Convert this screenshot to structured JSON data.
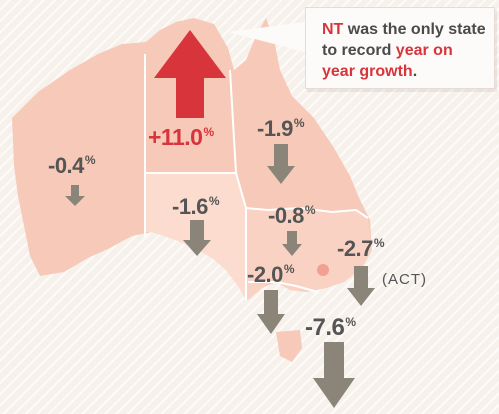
{
  "callout": {
    "state_word": "NT",
    "text_middle": "was the only state to record",
    "highlight": "year on year growth",
    "end": "."
  },
  "regions": {
    "wa": {
      "value": "-0.4",
      "unit": "%",
      "direction": "down"
    },
    "nt": {
      "value": "+11.0",
      "unit": "%",
      "direction": "up"
    },
    "qld": {
      "value": "-1.9",
      "unit": "%",
      "direction": "down"
    },
    "sa": {
      "value": "-1.6",
      "unit": "%",
      "direction": "down"
    },
    "nsw": {
      "value": "-0.8",
      "unit": "%",
      "direction": "down"
    },
    "act": {
      "value": "-2.7",
      "unit": "%",
      "direction": "down",
      "tag": "(ACT)"
    },
    "vic": {
      "value": "-2.0",
      "unit": "%",
      "direction": "down"
    },
    "tas": {
      "value": "-7.6",
      "unit": "%",
      "direction": "down"
    }
  },
  "colors": {
    "land": "#f7c9b8",
    "land_highlight": "#fbdccf",
    "border": "#ffffff",
    "arrow_down": "#8b8579",
    "arrow_up": "#d8343b",
    "accent_text": "#d8343b"
  }
}
